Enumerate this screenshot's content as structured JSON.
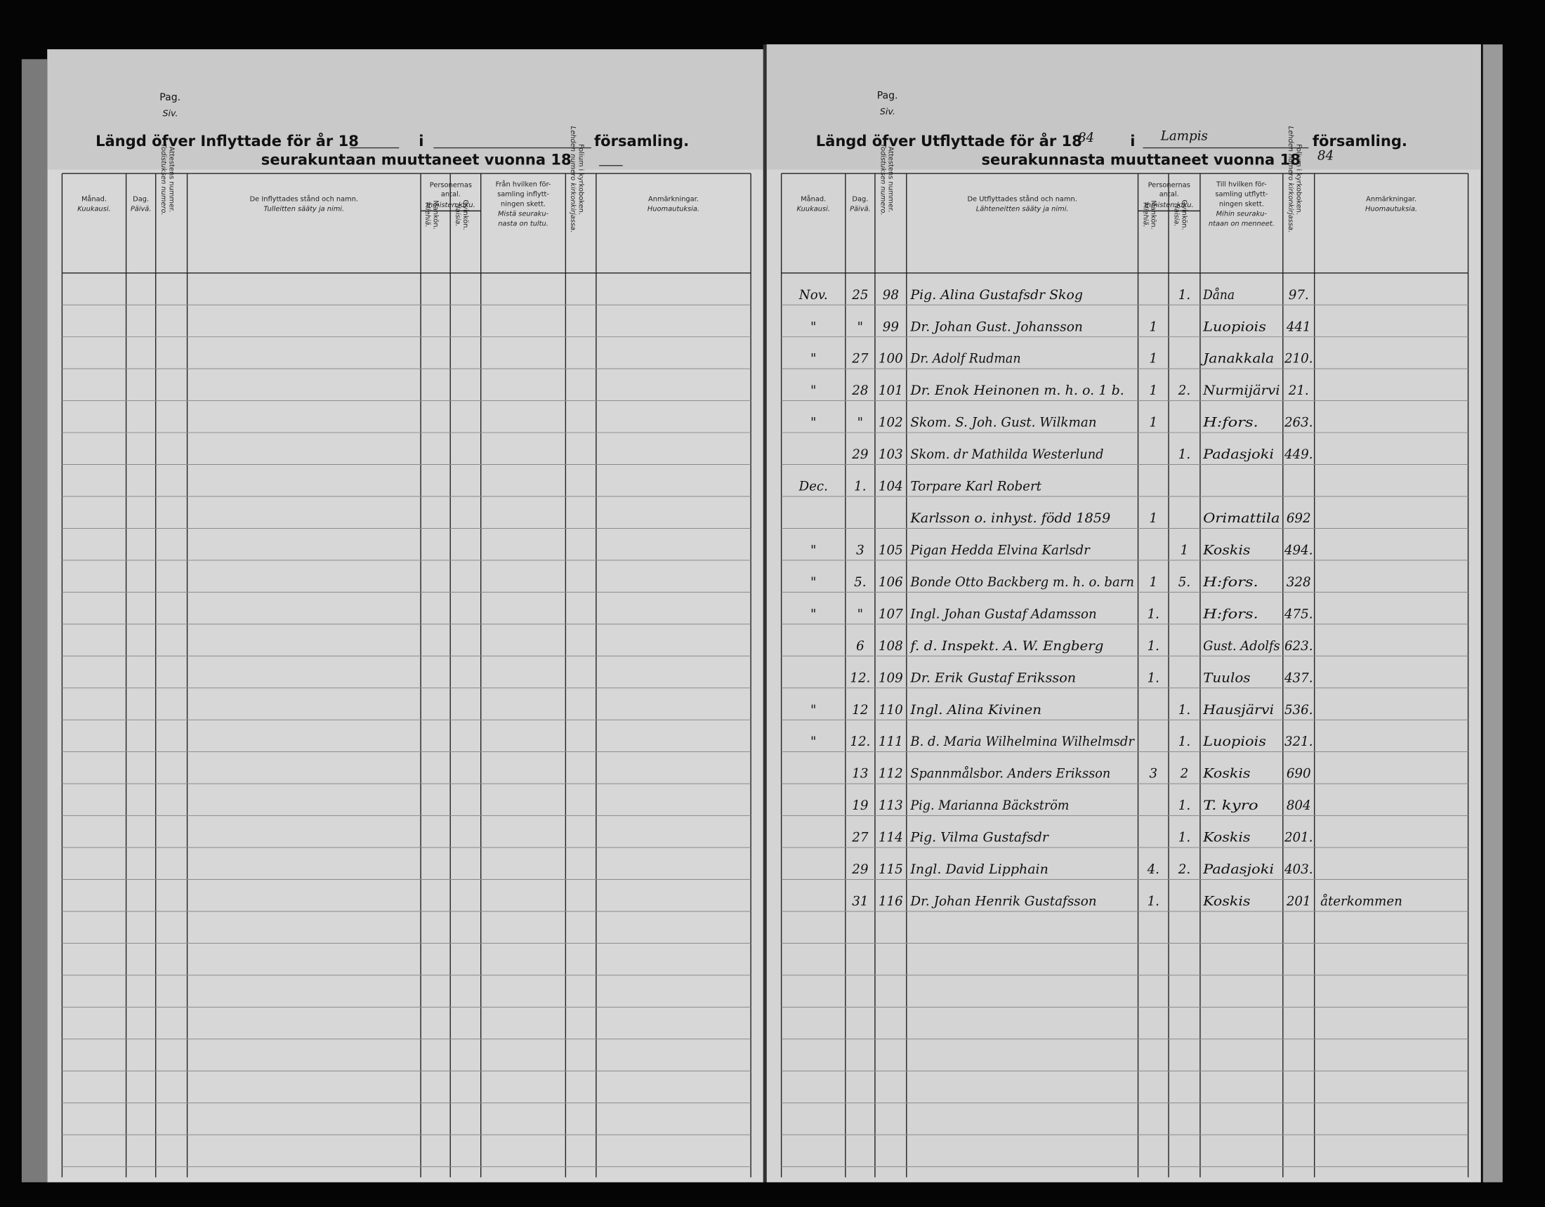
{
  "left_page": {
    "pag": "Pag.",
    "siv": "Siv.",
    "title": "Längd öfver Inflyttade för år 18",
    "title_i": "i",
    "title_end": "församling.",
    "subtitle": "seurakuntaan muuttaneet vuonna 18"
  },
  "right_page": {
    "pag": "Pag.",
    "siv": "Siv.",
    "title": "Längd öfver Utflyttade för år 18",
    "year": "84",
    "title_i": "i",
    "parish": "Lampis",
    "title_end": "församling.",
    "subtitle": "seurakunnasta muuttaneet vuonna 18",
    "subtitle_year": "84"
  },
  "left_columns": [
    {
      "sv": [
        "Månad."
      ],
      "fi": [
        "Kuukausi."
      ]
    },
    {
      "sv": [
        "Dag."
      ],
      "fi": [
        "Päivä."
      ]
    },
    {
      "sv": [
        "Attestens nummer."
      ],
      "fi": [
        "Todistuksen numero."
      ]
    },
    {
      "sv": [
        "De Inflyttades stånd och namn."
      ],
      "fi": [
        "Tulleitten sääty ja nimi."
      ]
    },
    {
      "sv": [
        "Mankön."
      ],
      "fi": [
        "Miehiä."
      ]
    },
    {
      "sv": [
        "Qvinkön."
      ],
      "fi": [
        "Naisia."
      ]
    },
    {
      "sv": [
        "Från hvilken för-",
        "samling inflytt-",
        "ningen skett."
      ],
      "fi": [
        "Mistä seuraku-",
        "nasta on tultu."
      ]
    },
    {
      "sv": [
        "Folium i kyrkoboken."
      ],
      "fi": [
        "Lehden numero kirkonkirjassa."
      ]
    },
    {
      "sv": [
        "Anmärkningar."
      ],
      "fi": [
        "Huomautuksia."
      ]
    }
  ],
  "right_columns": [
    {
      "sv": [
        "Månad."
      ],
      "fi": [
        "Kuukausi."
      ]
    },
    {
      "sv": [
        "Dag."
      ],
      "fi": [
        "Päivä."
      ]
    },
    {
      "sv": [
        "Attestens nummer."
      ],
      "fi": [
        "Todistuksen numero."
      ]
    },
    {
      "sv": [
        "De Utflyttades stånd och namn."
      ],
      "fi": [
        "Lähteneitten sääty ja nimi."
      ]
    },
    {
      "sv": [
        "Mankön."
      ],
      "fi": [
        "Miehiä."
      ]
    },
    {
      "sv": [
        "Qvinkön."
      ],
      "fi": [
        "Naisia."
      ]
    },
    {
      "sv": [
        "Till hvilken för-",
        "samling utflytt-",
        "ningen skett."
      ],
      "fi": [
        "Mihin seuraku-",
        "ntaan on menneet."
      ]
    },
    {
      "sv": [
        "Folium i kyrkoboken."
      ],
      "fi": [
        "Lehden numero kirkonkirjassa."
      ]
    },
    {
      "sv": [
        "Anmärkningar."
      ],
      "fi": [
        "Huomautuksia."
      ]
    }
  ],
  "left_group": {
    "sv": [
      "Personernas",
      "antal."
    ],
    "fi": [
      "Ihmisten luku."
    ]
  },
  "right_group": {
    "sv": [
      "Personernas",
      "antal."
    ],
    "fi": [
      "Ihmisten luku."
    ]
  },
  "rows": [
    [
      "Nov.",
      "25",
      "98",
      "Pig. Alina Gustafsdr Skog",
      null,
      "1.",
      "Dåna",
      "97.",
      null
    ],
    [
      "\"",
      "\"",
      "99",
      "Dr. Johan Gust. Johansson",
      "1",
      null,
      "Luopiois",
      "441",
      null
    ],
    [
      "\"",
      "27",
      "100",
      "Dr. Adolf Rudman",
      "1",
      null,
      "Janakkala",
      "210.",
      null
    ],
    [
      "\"",
      "28",
      "101",
      "Dr. Enok Heinonen m. h. o. 1 b.",
      "1",
      "2.",
      "Nurmijärvi",
      "21.",
      null
    ],
    [
      "\"",
      "\"",
      "102",
      "Skom. S. Joh. Gust. Wilkman",
      "1",
      null,
      "H:fors.",
      "263.",
      null
    ],
    [
      null,
      "29",
      "103",
      "Skom. dr Mathilda Westerlund",
      null,
      "1.",
      "Padasjoki",
      "449.",
      null
    ],
    [
      "Dec.",
      "1.",
      "104",
      "Torpare Karl Robert",
      null,
      null,
      null,
      null,
      null
    ],
    [
      null,
      null,
      null,
      "Karlsson o. inhyst. född 1859",
      "1",
      null,
      "Orimattila",
      "692",
      null
    ],
    [
      "\"",
      "3",
      "105",
      "Pigan Hedda Elvina Karlsdr",
      null,
      "1",
      "Koskis",
      "494.",
      null
    ],
    [
      "\"",
      "5.",
      "106",
      "Bonde Otto Backberg m. h. o. barn",
      "1",
      "5.",
      "H:fors.",
      "328",
      null
    ],
    [
      "\"",
      "\"",
      "107",
      "Ingl. Johan Gustaf Adamsson",
      "1.",
      null,
      "H:fors.",
      "475.",
      null
    ],
    [
      null,
      "6",
      "108",
      "f. d. Inspekt. A. W. Engberg",
      "1.",
      null,
      "Gust. Adolfs",
      "623.",
      null
    ],
    [
      null,
      "12.",
      "109",
      "Dr. Erik Gustaf Eriksson",
      "1.",
      null,
      "Tuulos",
      "437.",
      null
    ],
    [
      "\"",
      "12",
      "110",
      "Ingl. Alina Kivinen",
      null,
      "1.",
      "Hausjärvi",
      "536.",
      null
    ],
    [
      "\"",
      "12.",
      "111",
      "B. d. Maria Wilhelmina Wilhelmsdr",
      null,
      "1.",
      "Luopiois",
      "321.",
      null
    ],
    [
      null,
      "13",
      "112",
      "Spannmålsbor. Anders Eriksson",
      "3",
      "2",
      "Koskis",
      "690",
      null
    ],
    [
      null,
      "19",
      "113",
      "Pig. Marianna Bäckström",
      null,
      "1.",
      "T. kyro",
      "804",
      null
    ],
    [
      null,
      "27",
      "114",
      "Pig. Vilma Gustafsdr",
      null,
      "1.",
      "Koskis",
      "201.",
      null
    ],
    [
      null,
      "29",
      "115",
      "Ingl. David Lipphain",
      "4.",
      "2.",
      "Padasjoki",
      "403.",
      null
    ],
    [
      null,
      "31",
      "116",
      "Dr. Johan Henrik Gustafsson",
      "1.",
      null,
      "Koskis",
      "201",
      "återkommen"
    ]
  ]
}
